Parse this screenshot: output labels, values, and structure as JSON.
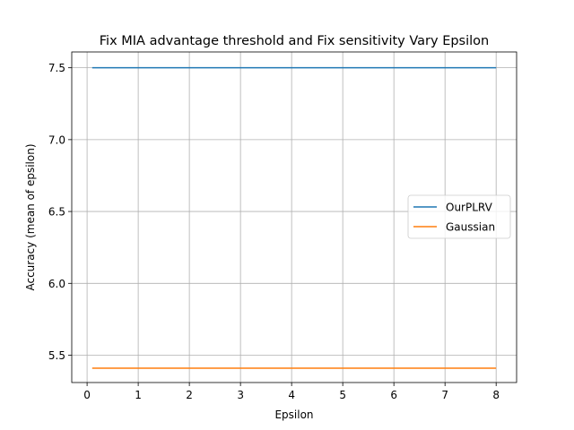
{
  "chart_data": {
    "type": "line",
    "title": "Fix MIA advantage threshold and Fix sensitivity Vary Epsilon",
    "xlabel": "Epsilon",
    "ylabel": "Accuracy (mean of epsilon)",
    "xlim": [
      -0.3,
      8.4
    ],
    "ylim": [
      5.31,
      7.61
    ],
    "xticks": [
      0,
      1,
      2,
      3,
      4,
      5,
      6,
      7,
      8
    ],
    "yticks": [
      5.5,
      6.0,
      6.5,
      7.0,
      7.5
    ],
    "ytick_labels": [
      "5.5",
      "6.0",
      "6.5",
      "7.0",
      "7.5"
    ],
    "grid": true,
    "legend_position": "center-right",
    "series": [
      {
        "name": "OurPLRV",
        "color": "#1f77b4",
        "x": [
          0.1,
          8.0
        ],
        "y": [
          7.5,
          7.5
        ]
      },
      {
        "name": "Gaussian",
        "color": "#ff7f0e",
        "x": [
          0.1,
          8.0
        ],
        "y": [
          5.41,
          5.41
        ]
      }
    ]
  }
}
